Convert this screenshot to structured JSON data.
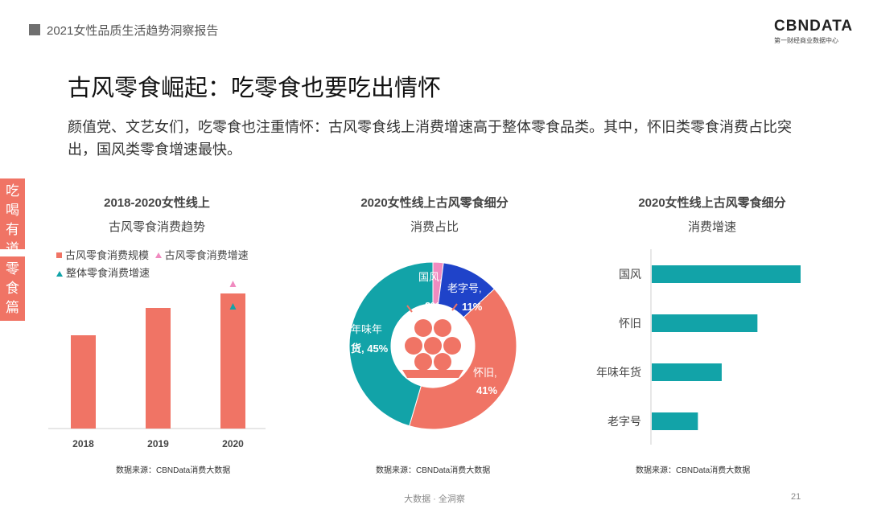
{
  "header": {
    "report_title": "2021女性品质生活趋势洞察报告"
  },
  "logo": {
    "main": "CBNDATA",
    "sub": "第一财经商业数据中心"
  },
  "page": {
    "title": "古风零食崛起：吃零食也要吃出情怀",
    "subtitle": "颜值党、文艺女们，吃零食也注重情怀：古风零食线上消费增速高于整体零食品类。其中，怀旧类零食消费占比突出，国风类零食增速最快。"
  },
  "side_tabs": [
    {
      "label": "吃喝有道"
    },
    {
      "label": "零食篇"
    }
  ],
  "colors": {
    "accent": "#f07465",
    "teal": "#12a3a8",
    "blue": "#1f43c9",
    "pink": "#f08bc0"
  },
  "chart_data": [
    {
      "type": "bar",
      "title_line1": "2018-2020女性线上",
      "title_line2": "古风零食消费趋势",
      "categories": [
        "2018",
        "2019",
        "2020"
      ],
      "series": [
        {
          "name": "古风零食消费规模",
          "values": [
            0.58,
            0.75,
            0.84
          ]
        },
        {
          "name": "古风零食消费增速",
          "values": [
            null,
            null,
            0.9
          ]
        },
        {
          "name": "整体零食消费增速",
          "values": [
            null,
            null,
            0.76
          ]
        }
      ],
      "ylim": [
        0,
        1
      ],
      "source": "数据来源：CBNData消费大数据"
    },
    {
      "type": "pie",
      "title_line1": "2020女性线上古风零食细分",
      "title_line2": "消费占比",
      "slices": [
        {
          "label": "国风,",
          "pct_label": "2%",
          "value": 2,
          "color": "#f08bc0"
        },
        {
          "label": "老字号,",
          "pct_label": "11%",
          "value": 11,
          "color": "#1f43c9"
        },
        {
          "label": "怀旧,",
          "pct_label": "41%",
          "value": 41,
          "color": "#f07465"
        },
        {
          "label": "年味年",
          "label2": "货, 45%",
          "value": 45,
          "color": "#12a3a8"
        }
      ],
      "source": "数据来源：CBNData消费大数据"
    },
    {
      "type": "bar",
      "orientation": "horizontal",
      "title_line1": "2020女性线上古风零食细分",
      "title_line2": "消费增速",
      "categories": [
        "国风",
        "怀旧",
        "年味年货",
        "老字号"
      ],
      "values": [
        1.0,
        0.71,
        0.47,
        0.31
      ],
      "source": "数据来源：CBNData消费大数据"
    }
  ],
  "footer": {
    "text": "大数据 · 全洞察",
    "page_number": "21"
  }
}
